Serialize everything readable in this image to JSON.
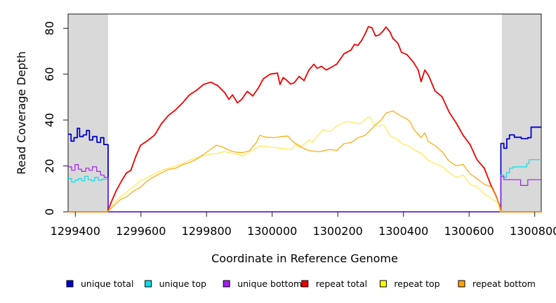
{
  "chart_data": {
    "type": "line",
    "title": "",
    "xlabel": "Coordinate in Reference Genome",
    "ylabel": "Read Coverage Depth",
    "x_ticks": [
      1299400,
      1299600,
      1299800,
      1300000,
      1300200,
      1300400,
      1300600,
      1300800
    ],
    "y_ticks": [
      0,
      20,
      40,
      60,
      80
    ],
    "xlim": [
      1299378,
      1300820
    ],
    "ylim": [
      0,
      86.2
    ],
    "grid": false,
    "legend_position": "bottom",
    "shaded_band_color": "#D9D9D9",
    "shaded_regions": [
      {
        "x0": 1299378,
        "x1": 1299500
      },
      {
        "x0": 1300700,
        "x1": 1300820
      }
    ],
    "series": [
      {
        "name": "unique total",
        "color": "#0000CD",
        "width": 1.8,
        "step": true,
        "points": [
          [
            1299378,
            33.8
          ],
          [
            1299387,
            30.8
          ],
          [
            1299396,
            32.3
          ],
          [
            1299406,
            36.4
          ],
          [
            1299413,
            32.8
          ],
          [
            1299424,
            33.5
          ],
          [
            1299434,
            35.4
          ],
          [
            1299443,
            31.3
          ],
          [
            1299453,
            32.8
          ],
          [
            1299466,
            30.3
          ],
          [
            1299477,
            32.3
          ],
          [
            1299487,
            29.3
          ],
          [
            1299500,
            0
          ],
          [
            1300697,
            29.8
          ],
          [
            1300706,
            27.7
          ],
          [
            1300715,
            31.8
          ],
          [
            1300723,
            33.5
          ],
          [
            1300738,
            32.5
          ],
          [
            1300759,
            31.9
          ],
          [
            1300779,
            32.3
          ],
          [
            1300789,
            36.9
          ],
          [
            1300820,
            36.9
          ]
        ]
      },
      {
        "name": "unique top",
        "color": "#00E0EA",
        "width": 1.2,
        "step": true,
        "points": [
          [
            1299378,
            14.5
          ],
          [
            1299389,
            13
          ],
          [
            1299399,
            13.8
          ],
          [
            1299409,
            14.5
          ],
          [
            1299419,
            13.5
          ],
          [
            1299429,
            15.5
          ],
          [
            1299439,
            14
          ],
          [
            1299449,
            13.5
          ],
          [
            1299459,
            15
          ],
          [
            1299470,
            13.8
          ],
          [
            1299481,
            14.2
          ],
          [
            1299500,
            0
          ],
          [
            1300697,
            16
          ],
          [
            1300706,
            15
          ],
          [
            1300714,
            17
          ],
          [
            1300723,
            19
          ],
          [
            1300734,
            19.6
          ],
          [
            1300776,
            21
          ],
          [
            1300783,
            22.7
          ],
          [
            1300820,
            22.7
          ]
        ]
      },
      {
        "name": "unique bottom",
        "color": "#A020F0",
        "width": 1.2,
        "step": true,
        "points": [
          [
            1299378,
            19.6
          ],
          [
            1299389,
            18.1
          ],
          [
            1299399,
            20.6
          ],
          [
            1299409,
            18.6
          ],
          [
            1299419,
            17.6
          ],
          [
            1299432,
            19
          ],
          [
            1299442,
            18.1
          ],
          [
            1299452,
            19.6
          ],
          [
            1299465,
            17.6
          ],
          [
            1299477,
            16
          ],
          [
            1299488,
            15
          ],
          [
            1299500,
            0
          ],
          [
            1300697,
            15.5
          ],
          [
            1300706,
            14
          ],
          [
            1300757,
            11.5
          ],
          [
            1300779,
            14
          ],
          [
            1300820,
            14
          ]
        ]
      },
      {
        "name": "repeat total",
        "color": "#EE0000",
        "width": 1.8,
        "step": false,
        "points": [
          [
            1299378,
            0
          ],
          [
            1299498,
            0
          ],
          [
            1299509,
            4
          ],
          [
            1299524,
            9
          ],
          [
            1299539,
            13
          ],
          [
            1299556,
            17
          ],
          [
            1299569,
            18
          ],
          [
            1299584,
            24
          ],
          [
            1299599,
            29
          ],
          [
            1299620,
            31
          ],
          [
            1299642,
            33.5
          ],
          [
            1299663,
            38.5
          ],
          [
            1299684,
            42
          ],
          [
            1299706,
            44.5
          ],
          [
            1299727,
            47.5
          ],
          [
            1299748,
            51
          ],
          [
            1299770,
            53
          ],
          [
            1299791,
            55.5
          ],
          [
            1299813,
            56.5
          ],
          [
            1299834,
            55
          ],
          [
            1299855,
            52
          ],
          [
            1299868,
            49
          ],
          [
            1299879,
            51
          ],
          [
            1299894,
            47.5
          ],
          [
            1299907,
            49
          ],
          [
            1299924,
            52.5
          ],
          [
            1299941,
            50.5
          ],
          [
            1299958,
            54
          ],
          [
            1299973,
            58
          ],
          [
            1299994,
            60
          ],
          [
            1300016,
            60.5
          ],
          [
            1300024,
            55.5
          ],
          [
            1300033,
            58.5
          ],
          [
            1300043,
            57.5
          ],
          [
            1300056,
            55.7
          ],
          [
            1300067,
            56.2
          ],
          [
            1300082,
            59
          ],
          [
            1300097,
            57.2
          ],
          [
            1300112,
            61.8
          ],
          [
            1300127,
            64.3
          ],
          [
            1300137,
            62.5
          ],
          [
            1300150,
            63.4
          ],
          [
            1300165,
            61.8
          ],
          [
            1300180,
            63
          ],
          [
            1300197,
            64.4
          ],
          [
            1300219,
            68.9
          ],
          [
            1300240,
            70.5
          ],
          [
            1300251,
            73
          ],
          [
            1300261,
            72.5
          ],
          [
            1300272,
            74.6
          ],
          [
            1300283,
            77.5
          ],
          [
            1300293,
            80.7
          ],
          [
            1300304,
            80.2
          ],
          [
            1300315,
            76.6
          ],
          [
            1300326,
            77.1
          ],
          [
            1300338,
            78.8
          ],
          [
            1300347,
            80.5
          ],
          [
            1300358,
            78.6
          ],
          [
            1300368,
            75.6
          ],
          [
            1300383,
            73.5
          ],
          [
            1300394,
            69.5
          ],
          [
            1300411,
            68.5
          ],
          [
            1300432,
            64.9
          ],
          [
            1300445,
            61.8
          ],
          [
            1300454,
            56.7
          ],
          [
            1300465,
            61.8
          ],
          [
            1300477,
            59.3
          ],
          [
            1300496,
            52.7
          ],
          [
            1300518,
            50.1
          ],
          [
            1300539,
            43.5
          ],
          [
            1300560,
            38.9
          ],
          [
            1300582,
            33.3
          ],
          [
            1300603,
            29.3
          ],
          [
            1300624,
            22.7
          ],
          [
            1300646,
            19.1
          ],
          [
            1300667,
            11.5
          ],
          [
            1300682,
            6.9
          ],
          [
            1300693,
            2.9
          ],
          [
            1300697,
            0
          ],
          [
            1300820,
            0
          ]
        ]
      },
      {
        "name": "repeat top",
        "color": "#FFE94D",
        "swatch": "#FFFF00",
        "width": 1.2,
        "step": false,
        "points": [
          [
            1299378,
            0
          ],
          [
            1299498,
            0
          ],
          [
            1299509,
            2
          ],
          [
            1299524,
            4.5
          ],
          [
            1299539,
            7
          ],
          [
            1299556,
            8.5
          ],
          [
            1299577,
            11
          ],
          [
            1299599,
            13.6
          ],
          [
            1299620,
            15
          ],
          [
            1299642,
            16.7
          ],
          [
            1299663,
            18
          ],
          [
            1299684,
            19
          ],
          [
            1299706,
            20
          ],
          [
            1299727,
            21
          ],
          [
            1299748,
            22.5
          ],
          [
            1299770,
            23.6
          ],
          [
            1299791,
            24.5
          ],
          [
            1299813,
            25.2
          ],
          [
            1299834,
            25.5
          ],
          [
            1299855,
            26.3
          ],
          [
            1299877,
            25.5
          ],
          [
            1299898,
            25
          ],
          [
            1299909,
            24.2
          ],
          [
            1299924,
            25.5
          ],
          [
            1299941,
            27
          ],
          [
            1299962,
            28.7
          ],
          [
            1299994,
            28.2
          ],
          [
            1300026,
            27.7
          ],
          [
            1300058,
            27.2
          ],
          [
            1300075,
            29.7
          ],
          [
            1300090,
            28.5
          ],
          [
            1300112,
            31.3
          ],
          [
            1300122,
            30.2
          ],
          [
            1300154,
            35.9
          ],
          [
            1300176,
            34.9
          ],
          [
            1300197,
            37.4
          ],
          [
            1300225,
            39.4
          ],
          [
            1300246,
            38.9
          ],
          [
            1300268,
            38.4
          ],
          [
            1300289,
            40.9
          ],
          [
            1300298,
            41.4
          ],
          [
            1300311,
            37.9
          ],
          [
            1300326,
            37.4
          ],
          [
            1300341,
            37.9
          ],
          [
            1300358,
            33.3
          ],
          [
            1300379,
            31.8
          ],
          [
            1300396,
            29.7
          ],
          [
            1300417,
            28.7
          ],
          [
            1300432,
            27
          ],
          [
            1300454,
            25.5
          ],
          [
            1300475,
            22.5
          ],
          [
            1300496,
            21
          ],
          [
            1300518,
            19.7
          ],
          [
            1300539,
            17.1
          ],
          [
            1300560,
            15
          ],
          [
            1300582,
            16
          ],
          [
            1300603,
            12
          ],
          [
            1300624,
            11
          ],
          [
            1300646,
            7.9
          ],
          [
            1300667,
            5.9
          ],
          [
            1300688,
            3.8
          ],
          [
            1300695,
            0
          ],
          [
            1300820,
            0
          ]
        ]
      },
      {
        "name": "repeat bottom",
        "color": "#FFA500",
        "width": 1.2,
        "step": false,
        "points": [
          [
            1299378,
            0
          ],
          [
            1299498,
            0
          ],
          [
            1299509,
            1.5
          ],
          [
            1299524,
            3.5
          ],
          [
            1299539,
            5.5
          ],
          [
            1299556,
            6.5
          ],
          [
            1299577,
            9
          ],
          [
            1299599,
            10.8
          ],
          [
            1299620,
            13.5
          ],
          [
            1299642,
            15.5
          ],
          [
            1299663,
            17
          ],
          [
            1299684,
            18.5
          ],
          [
            1299706,
            19
          ],
          [
            1299727,
            20.5
          ],
          [
            1299748,
            21.5
          ],
          [
            1299770,
            23
          ],
          [
            1299791,
            25
          ],
          [
            1299813,
            27.3
          ],
          [
            1299830,
            29
          ],
          [
            1299845,
            28.5
          ],
          [
            1299866,
            27
          ],
          [
            1299887,
            26
          ],
          [
            1299909,
            25.8
          ],
          [
            1299930,
            26.5
          ],
          [
            1299951,
            30
          ],
          [
            1299962,
            33.3
          ],
          [
            1299984,
            32.5
          ],
          [
            1300005,
            32.3
          ],
          [
            1300026,
            32.8
          ],
          [
            1300048,
            33
          ],
          [
            1300058,
            31.3
          ],
          [
            1300080,
            28.7
          ],
          [
            1300112,
            26.7
          ],
          [
            1300144,
            26.2
          ],
          [
            1300176,
            27.2
          ],
          [
            1300197,
            26.7
          ],
          [
            1300219,
            29.7
          ],
          [
            1300240,
            30.2
          ],
          [
            1300261,
            32.3
          ],
          [
            1300283,
            33.3
          ],
          [
            1300298,
            35.4
          ],
          [
            1300311,
            37.4
          ],
          [
            1300332,
            40
          ],
          [
            1300347,
            43
          ],
          [
            1300368,
            44
          ],
          [
            1300390,
            42
          ],
          [
            1300411,
            40.4
          ],
          [
            1300422,
            38.9
          ],
          [
            1300432,
            35.9
          ],
          [
            1300454,
            32.3
          ],
          [
            1300465,
            34.4
          ],
          [
            1300475,
            30.8
          ],
          [
            1300496,
            28.8
          ],
          [
            1300518,
            26.2
          ],
          [
            1300539,
            22.1
          ],
          [
            1300560,
            20.1
          ],
          [
            1300582,
            20.6
          ],
          [
            1300603,
            16.6
          ],
          [
            1300624,
            14.5
          ],
          [
            1300646,
            12
          ],
          [
            1300667,
            10.9
          ],
          [
            1300678,
            7.9
          ],
          [
            1300688,
            4.8
          ],
          [
            1300695,
            1.8
          ],
          [
            1300697,
            0
          ],
          [
            1300820,
            0
          ]
        ]
      }
    ]
  }
}
